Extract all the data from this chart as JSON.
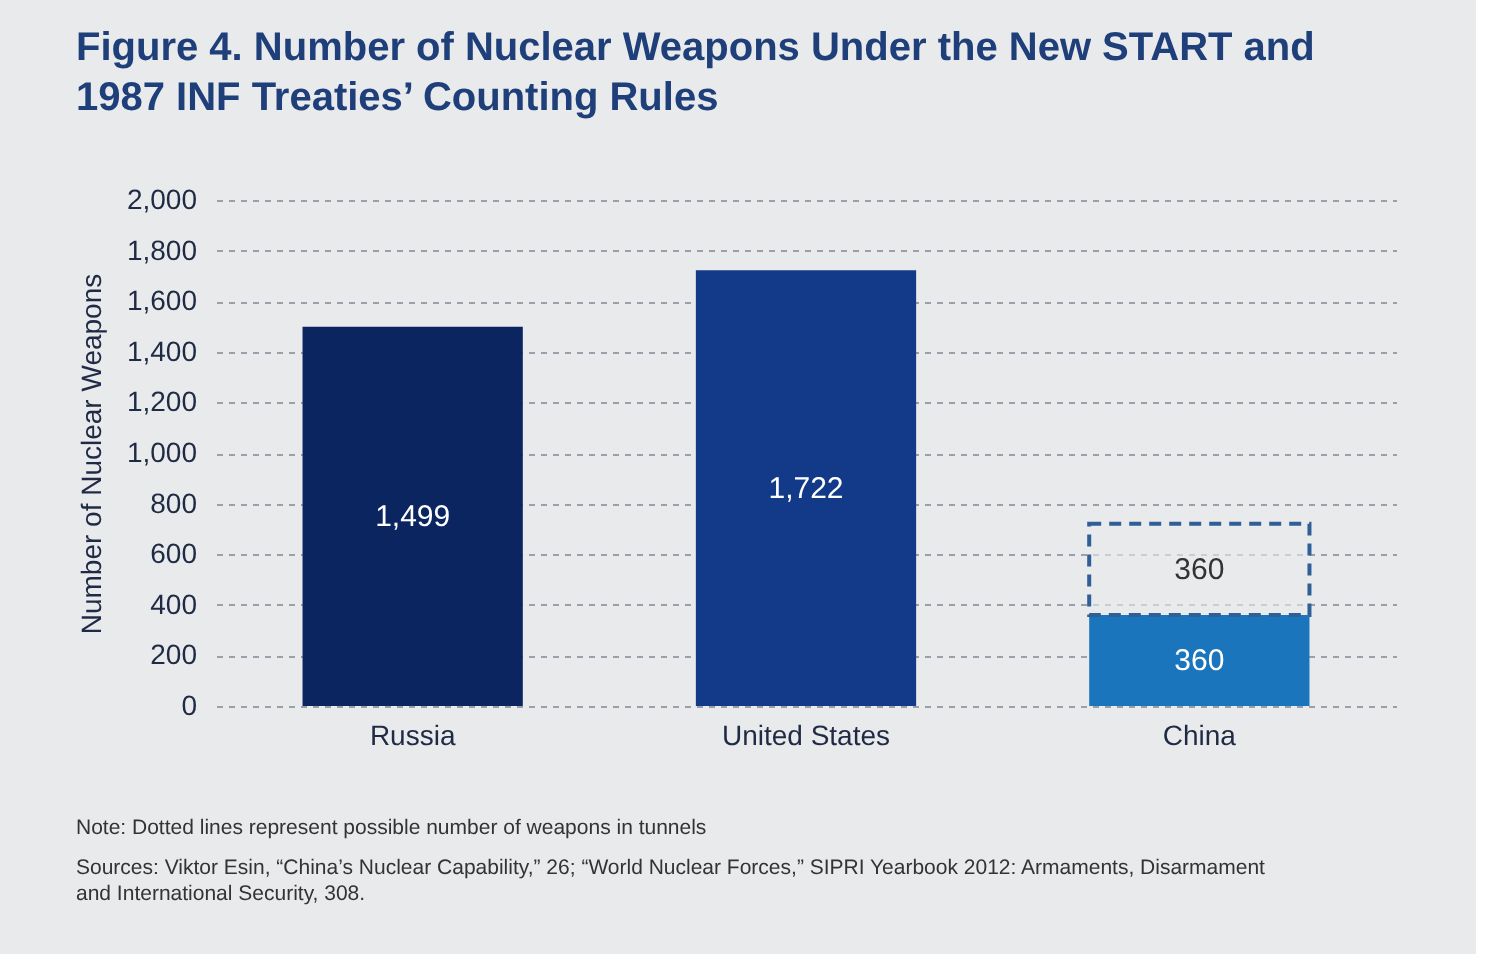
{
  "chart_data": {
    "type": "bar",
    "title": "Figure 4. Number of Nuclear Weapons Under the New START and 1987 INF Treaties’ Counting Rules",
    "ylabel": "Number of Nuclear Weapons",
    "categories": [
      "Russia",
      "United States",
      "China"
    ],
    "stacked": true,
    "series": [
      {
        "colors": [
          "#0b2560",
          "#123a88",
          "#1b75bc"
        ],
        "values": [
          1499,
          1722,
          360
        ],
        "value_labels": [
          "1,499",
          "1,722",
          "360"
        ]
      },
      {
        "color": "#2f5f96",
        "line_style": "dashed",
        "values": [
          null,
          null,
          360
        ],
        "value_labels": [
          null,
          null,
          "360"
        ]
      }
    ],
    "ylim": [
      0,
      2000
    ],
    "yticks": [
      0,
      200,
      400,
      600,
      800,
      {
        "value": 1000,
        "label": "1,000"
      },
      {
        "value": 1200,
        "label": "1,200"
      },
      {
        "value": 1400,
        "label": "1,400"
      },
      {
        "value": 1600,
        "label": "1,600"
      },
      {
        "value": 1800,
        "label": "1,800"
      },
      {
        "value": 2000,
        "label": "2,000"
      }
    ],
    "grid": "y",
    "annotations": [
      "Note: Dotted lines represent possible number of weapons in tunnels",
      "Sources: Viktor Esin, “China’s Nuclear Capability,” 26; “World Nuclear Forces,” SIPRI Yearbook 2012: Armaments, Disarmament and International Security, 308."
    ]
  }
}
